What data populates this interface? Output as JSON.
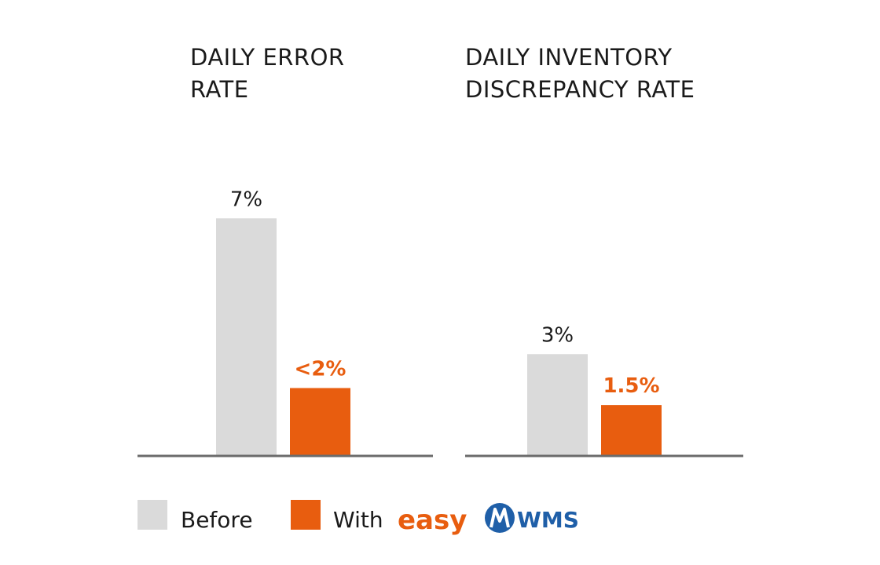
{
  "colors": {
    "before": "#dadada",
    "with": "#e85d0f",
    "axis": "#6b6b6b",
    "text": "#1a1a1a",
    "logo_blue": "#1f5fa8"
  },
  "chart_data": [
    {
      "type": "bar",
      "title_lines": [
        "DAILY ERROR",
        "RATE"
      ],
      "categories": [
        "Before",
        "With"
      ],
      "values": [
        7,
        2
      ],
      "value_labels": [
        "7%",
        "<2%"
      ],
      "ylim": [
        0,
        8
      ]
    },
    {
      "type": "bar",
      "title_lines": [
        "DAILY INVENTORY",
        "DISCREPANCY RATE"
      ],
      "categories": [
        "Before",
        "With"
      ],
      "values": [
        3,
        1.5
      ],
      "value_labels": [
        "3%",
        "1.5%"
      ],
      "ylim": [
        0,
        8
      ]
    }
  ],
  "legend": {
    "before_label": "Before",
    "with_label": "With",
    "logo_easy": "easy",
    "logo_wms": "WMS"
  }
}
